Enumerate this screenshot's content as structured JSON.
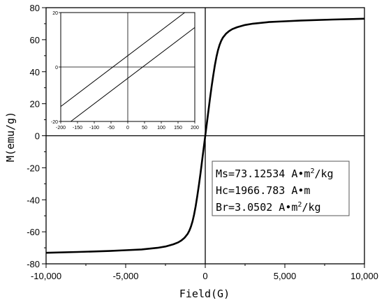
{
  "chart_data": [
    {
      "type": "line",
      "xlabel": "Field(G)",
      "ylabel": "M(emu/g)",
      "xlim": [
        -10000,
        10000
      ],
      "ylim": [
        -80,
        80
      ],
      "xticks": [
        -10000,
        -5000,
        0,
        5000,
        10000
      ],
      "xtick_labels": [
        "-10,000",
        "-5,000",
        "0",
        "5,000",
        "10,000"
      ],
      "yticks": [
        -80,
        -60,
        -40,
        -20,
        0,
        20,
        40,
        60,
        80
      ],
      "ytick_labels": [
        "-80",
        "-60",
        "-40",
        "-20",
        "0",
        "20",
        "40",
        "60",
        "80"
      ],
      "grid": false,
      "series": [
        {
          "color": "#000000",
          "x": [
            -10000,
            -8000,
            -6000,
            -5000,
            -4000,
            -3000,
            -2500,
            -2000,
            -1700,
            -1500,
            -1300,
            -1100,
            -1000,
            -900,
            -800,
            -700,
            -600,
            -500,
            -400,
            -300,
            -200,
            -100,
            0,
            100,
            200,
            300,
            400,
            500,
            600,
            700,
            800,
            900,
            1000,
            1100,
            1300,
            1500,
            1700,
            2000,
            2500,
            3000,
            4000,
            5000,
            6000,
            8000,
            10000
          ],
          "y": [
            -73.1,
            -72.6,
            -72.0,
            -71.5,
            -71.0,
            -70.0,
            -69.2,
            -67.8,
            -66.6,
            -65.4,
            -63.7,
            -61.2,
            -59.3,
            -56.7,
            -53.4,
            -49.2,
            -43.9,
            -37.6,
            -30.8,
            -23.4,
            -15.8,
            -7.9,
            0,
            7.9,
            15.8,
            23.4,
            30.8,
            37.6,
            43.9,
            49.2,
            53.4,
            56.7,
            59.3,
            61.2,
            63.7,
            65.4,
            66.6,
            67.8,
            69.2,
            70.0,
            71.0,
            71.5,
            72.0,
            72.6,
            73.1
          ]
        }
      ],
      "annotations": [
        {
          "prefix": "Ms=73.12534 A•m",
          "sup": "2",
          "suffix": "/kg"
        },
        {
          "prefix": "Hc=1966.783 A•m",
          "sup": "",
          "suffix": ""
        },
        {
          "prefix": "Br=3.0502 A•m",
          "sup": "2",
          "suffix": "/kg"
        }
      ]
    },
    {
      "type": "line",
      "xlim": [
        -200,
        200
      ],
      "ylim": [
        -20,
        20
      ],
      "xticks": [
        -200,
        -150,
        -100,
        -50,
        0,
        50,
        100,
        150,
        200
      ],
      "xtick_labels": [
        "-200",
        "-150",
        "-100",
        "-50",
        "0",
        "50",
        "100",
        "150",
        "200"
      ],
      "yticks": [
        -20,
        0,
        20
      ],
      "ytick_labels": [
        "-20",
        "0",
        "20"
      ],
      "grid": false,
      "series": [
        {
          "color": "#000000",
          "x": [
            -200,
            170
          ],
          "y": [
            -14.5,
            20
          ]
        },
        {
          "color": "#000000",
          "x": [
            -170,
            200
          ],
          "y": [
            -20,
            14.5
          ]
        }
      ]
    }
  ]
}
